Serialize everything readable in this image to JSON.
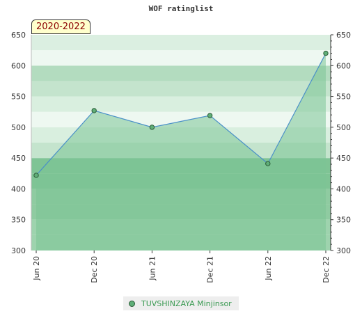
{
  "chart_data": {
    "type": "area",
    "title": "WOF ratinglist",
    "period_label": "2020-2022",
    "x": [
      "Jun 20",
      "Dec 20",
      "Jun 21",
      "Dec 21",
      "Jun 22",
      "Dec 22"
    ],
    "series": [
      {
        "name": "TUVSHINZAYA Minjinsor",
        "values": [
          422,
          527,
          500,
          519,
          441,
          620
        ]
      }
    ],
    "ylim": [
      300,
      650
    ],
    "yticks": [
      300,
      350,
      400,
      450,
      500,
      550,
      600,
      650
    ],
    "grid": true,
    "legend": "bottom-center",
    "colors": {
      "line": "#4a90c8",
      "fill": "#7cc496",
      "marker": "#5fae78",
      "badge_text": "#8b0000"
    }
  }
}
